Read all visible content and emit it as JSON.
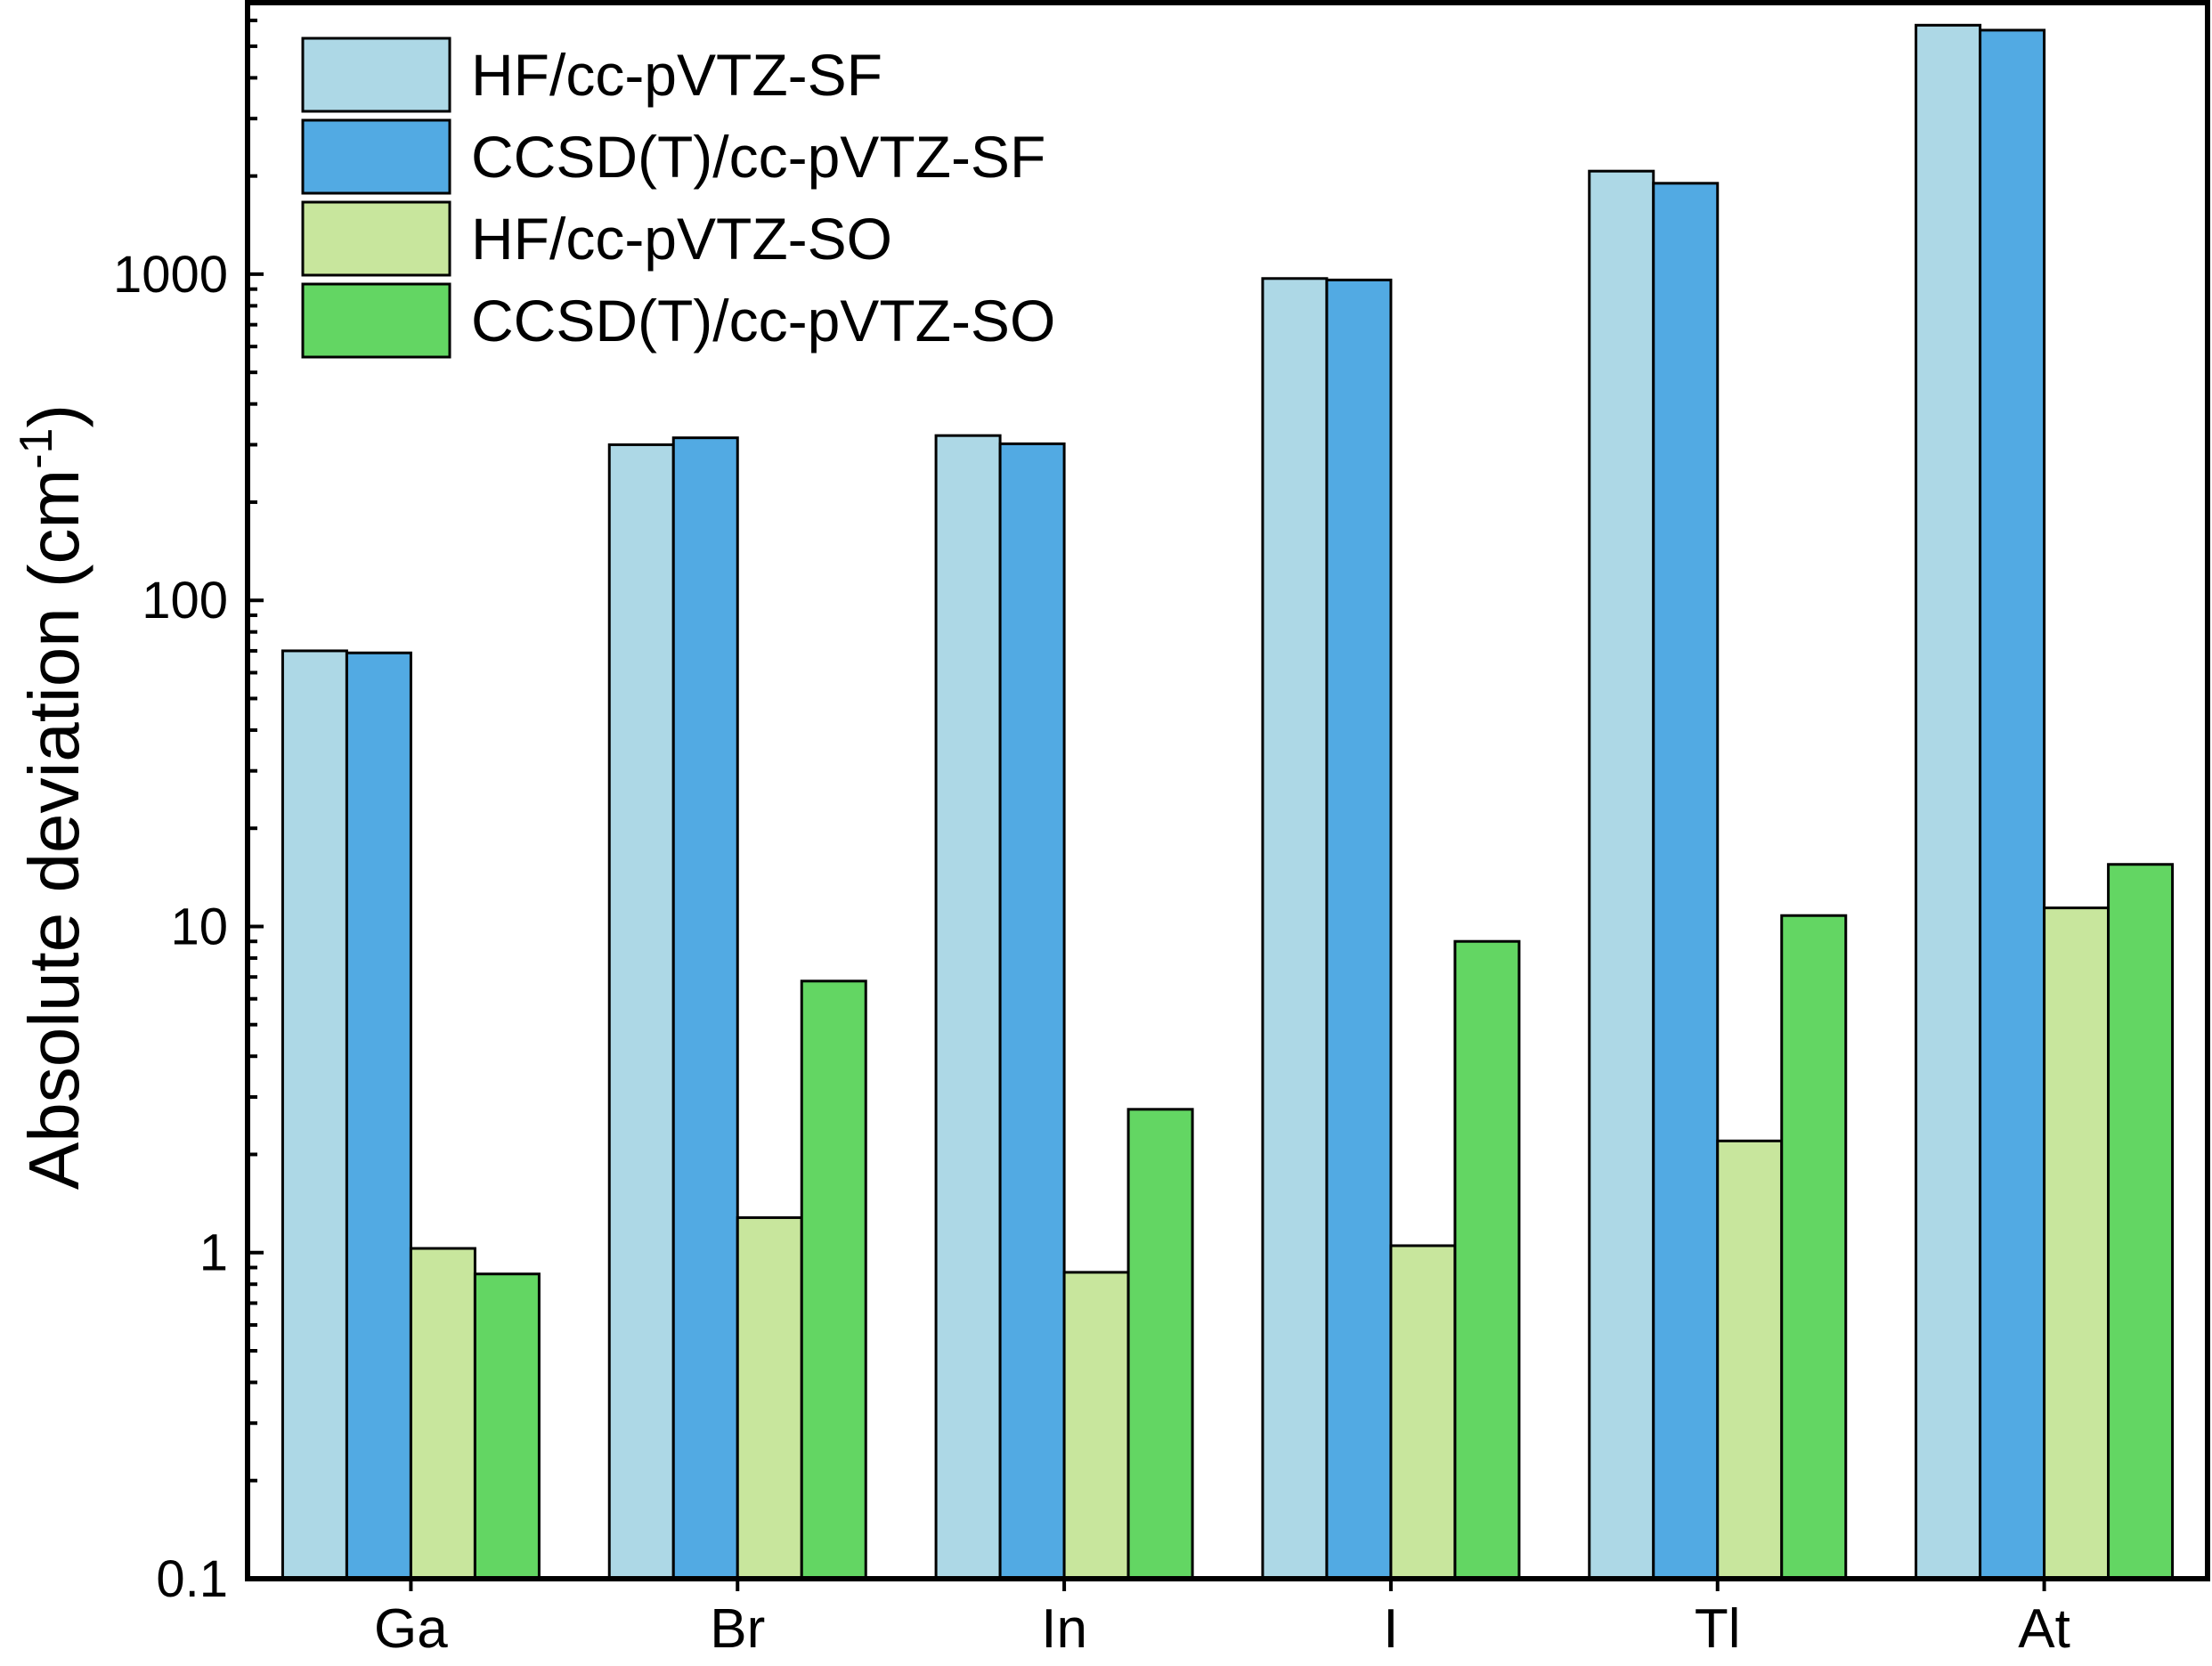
{
  "chart_data": {
    "type": "bar",
    "yscale": "log",
    "title": "",
    "xlabel": "",
    "ylabel": "Absolute deviation (cm",
    "ylabel_superscript": "-1",
    "ylabel_close": ")",
    "ylim": [
      0.1,
      6800
    ],
    "yticks": [
      {
        "value": 0.1,
        "label": "0.1"
      },
      {
        "value": 1,
        "label": "1"
      },
      {
        "value": 10,
        "label": "10"
      },
      {
        "value": 100,
        "label": "100"
      },
      {
        "value": 1000,
        "label": "1000"
      }
    ],
    "legend_position": "top-left",
    "categories": [
      "Ga",
      "Br",
      "In",
      "I",
      "Tl",
      "At"
    ],
    "series": [
      {
        "name": "HF/cc-pVTZ-SF",
        "color": "#add8e6",
        "values": [
          70,
          300,
          320,
          970,
          2070,
          5800
        ]
      },
      {
        "name": "CCSD(T)/cc-pVTZ-SF",
        "color": "#52aae3",
        "values": [
          69,
          315,
          302,
          960,
          1900,
          5600
        ]
      },
      {
        "name": "HF/cc-pVTZ-SO",
        "color": "#c8e69d",
        "values": [
          1.03,
          1.28,
          0.87,
          1.05,
          2.2,
          11.4
        ]
      },
      {
        "name": "CCSD(T)/cc-pVTZ-SO",
        "color": "#63d663",
        "values": [
          0.86,
          6.8,
          2.75,
          9.0,
          10.8,
          15.5
        ]
      }
    ]
  }
}
